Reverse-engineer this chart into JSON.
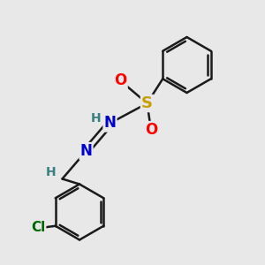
{
  "bg_color": "#e8e8e8",
  "bond_color": "#1a1a1a",
  "bond_width": 1.8,
  "S_color": "#c8a000",
  "O_color": "#ff0000",
  "N_color": "#0000cc",
  "Cl_color": "#006600",
  "H_color": "#3a8080",
  "figsize": [
    3.0,
    3.0
  ],
  "dpi": 100,
  "xlim": [
    0,
    10
  ],
  "ylim": [
    0,
    10
  ]
}
